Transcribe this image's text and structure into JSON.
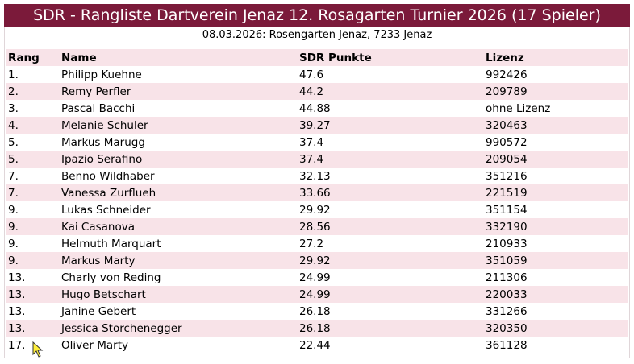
{
  "header": {
    "title": "SDR - Rangliste Dartverein Jenaz 12. Rosagarten Turnier 2026 (17 Spieler)",
    "subtitle": "08.03.2026: Rosengarten Jenaz, 7233 Jenaz"
  },
  "table": {
    "columns": [
      "Rang",
      "Name",
      "SDR Punkte",
      "Lizenz"
    ],
    "rows": [
      [
        "1.",
        "Philipp Kuehne",
        "47.6",
        "992426"
      ],
      [
        "2.",
        "Remy Perfler",
        "44.2",
        "209789"
      ],
      [
        "3.",
        "Pascal Bacchi",
        "44.88",
        "ohne Lizenz"
      ],
      [
        "4.",
        "Melanie Schuler",
        "39.27",
        "320463"
      ],
      [
        "5.",
        "Markus Marugg",
        "37.4",
        "990572"
      ],
      [
        "5.",
        "Ipazio Serafino",
        "37.4",
        "209054"
      ],
      [
        "7.",
        "Benno Wildhaber",
        "32.13",
        "351216"
      ],
      [
        "7.",
        "Vanessa Zurflueh",
        "33.66",
        "221519"
      ],
      [
        "9.",
        "Lukas Schneider",
        "29.92",
        "351154"
      ],
      [
        "9.",
        "Kai Casanova",
        "28.56",
        "332190"
      ],
      [
        "9.",
        "Helmuth Marquart",
        "27.2",
        "210933"
      ],
      [
        "9.",
        "Markus Marty",
        "29.92",
        "351059"
      ],
      [
        "13.",
        "Charly von Reding",
        "24.99",
        "211306"
      ],
      [
        "13.",
        "Hugo Betschart",
        "24.99",
        "220033"
      ],
      [
        "13.",
        "Janine Gebert",
        "26.18",
        "331266"
      ],
      [
        "13.",
        "Jessica Storchenegger",
        "26.18",
        "320350"
      ],
      [
        "17.",
        "Oliver Marty",
        "22.44",
        "361128"
      ]
    ]
  }
}
